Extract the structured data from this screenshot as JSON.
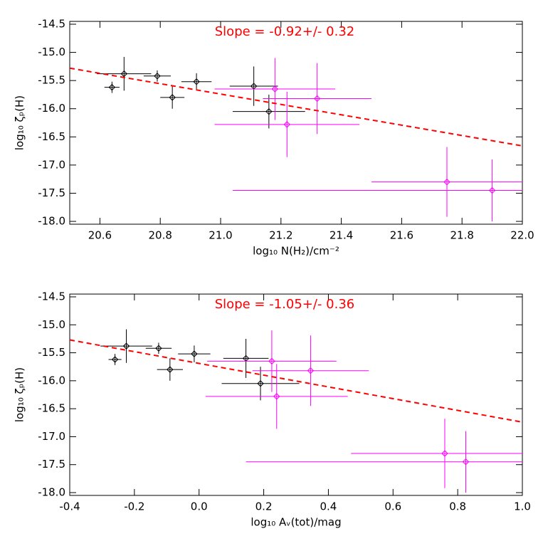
{
  "chart_data": [
    {
      "type": "scatter",
      "annotation": "Slope = -0.92+/- 0.32",
      "annotation_color": "#ff0000",
      "xlabel": "log₁₀ N(H₂)/cm⁻²",
      "ylabel": "log₁₀ ζₚ(H)",
      "xlim": [
        20.5,
        22.0
      ],
      "ylim": [
        -18.05,
        -14.45
      ],
      "xticks": [
        20.6,
        20.8,
        {
          "value": 21,
          "label": "21.0"
        },
        21.2,
        21.4,
        21.6,
        21.8,
        {
          "value": 22,
          "label": "22.0"
        }
      ],
      "yticks": [
        -14.5,
        {
          "value": -15,
          "label": "-15.0"
        },
        -15.5,
        {
          "value": -16,
          "label": "-16.0"
        },
        -16.5,
        {
          "value": -17,
          "label": "-17.0"
        },
        -17.5,
        {
          "value": -18,
          "label": "-18.0"
        }
      ],
      "series": [
        {
          "color": "#000000",
          "x": [
            20.64,
            20.68,
            20.79,
            20.84,
            20.92,
            21.11,
            21.16
          ],
          "y": [
            -15.62,
            -15.38,
            -15.42,
            -15.8,
            -15.52,
            -15.6,
            -16.05
          ],
          "xerr": [
            0.025,
            0.09,
            0.045,
            0.04,
            0.05,
            0.08,
            0.12
          ],
          "yerr": [
            0.1,
            0.3,
            0.1,
            0.2,
            0.15,
            0.35,
            0.3
          ]
        },
        {
          "color": "#ff00ff",
          "x": [
            21.18,
            21.22,
            21.32,
            21.75,
            21.9
          ],
          "y": [
            -15.65,
            -16.28,
            -15.82,
            -17.3,
            -17.45
          ],
          "xerr": [
            0.2,
            0.24,
            0.18,
            0.25,
            0.86
          ],
          "yerr": [
            0.55,
            0.58,
            0.63,
            0.62,
            0.55
          ]
        }
      ],
      "fit": {
        "color": "#ff0000",
        "x": [
          20.5,
          22.0
        ],
        "y": [
          -15.28,
          -16.66
        ]
      }
    },
    {
      "type": "scatter",
      "annotation": "Slope = -1.05+/- 0.36",
      "annotation_color": "#ff0000",
      "xlabel": "log₁₀ Aᵥ(tot)/mag",
      "ylabel": "log₁₀ ζₚ(H)",
      "xlim": [
        -0.4,
        1.0
      ],
      "ylim": [
        -18.05,
        -14.45
      ],
      "xticks": [
        -0.4,
        -0.2,
        {
          "value": 0,
          "label": "0.0"
        },
        0.2,
        0.4,
        0.6,
        0.8,
        {
          "value": 1,
          "label": "1.0"
        }
      ],
      "yticks": [
        -14.5,
        {
          "value": -15,
          "label": "-15.0"
        },
        -15.5,
        {
          "value": -16,
          "label": "-16.0"
        },
        -16.5,
        {
          "value": -17,
          "label": "-17.0"
        },
        -17.5,
        {
          "value": -18,
          "label": "-18.0"
        }
      ],
      "series": [
        {
          "color": "#000000",
          "x": [
            -0.26,
            -0.225,
            -0.125,
            -0.09,
            -0.015,
            0.145,
            0.19
          ],
          "y": [
            -15.62,
            -15.38,
            -15.42,
            -15.8,
            -15.52,
            -15.6,
            -16.05
          ],
          "xerr": [
            0.02,
            0.08,
            0.04,
            0.04,
            0.05,
            0.07,
            0.12
          ],
          "yerr": [
            0.1,
            0.3,
            0.1,
            0.2,
            0.15,
            0.35,
            0.3
          ]
        },
        {
          "color": "#ff00ff",
          "x": [
            0.225,
            0.24,
            0.345,
            0.76,
            0.825
          ],
          "y": [
            -15.65,
            -16.28,
            -15.82,
            -17.3,
            -17.45
          ],
          "xerr": [
            0.2,
            0.22,
            0.18,
            0.29,
            0.68
          ],
          "yerr": [
            0.55,
            0.58,
            0.63,
            0.62,
            0.55
          ]
        }
      ],
      "fit": {
        "color": "#ff0000",
        "x": [
          -0.4,
          1.0
        ],
        "y": [
          -15.27,
          -16.74
        ]
      }
    }
  ]
}
